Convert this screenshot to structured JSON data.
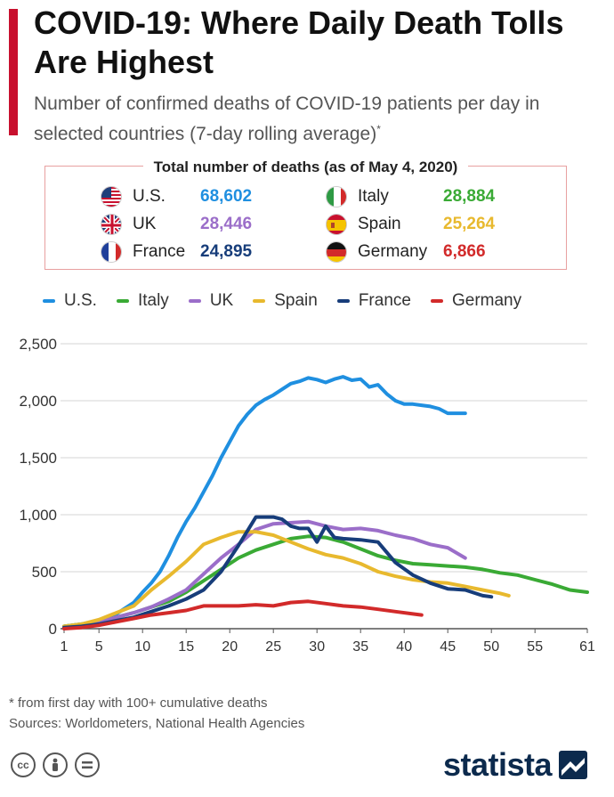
{
  "header": {
    "title": "COVID-19: Where Daily Death Tolls Are Highest",
    "subtitle": "Number of confirmed deaths of COVID-19 patients per day in selected countries (7-day rolling average)",
    "subtitle_mark": "*"
  },
  "totals": {
    "title": "Total number of deaths (as of May 4, 2020)",
    "rows": [
      {
        "country": "U.S.",
        "value": "68,602",
        "color": "#1f8fe0",
        "flag": "us-flag-icon"
      },
      {
        "country": "Italy",
        "value": "28,884",
        "color": "#3aaa35",
        "flag": "italy-flag-icon"
      },
      {
        "country": "UK",
        "value": "28,446",
        "color": "#9b6ec9",
        "flag": "uk-flag-icon"
      },
      {
        "country": "Spain",
        "value": "25,264",
        "color": "#e8b92e",
        "flag": "spain-flag-icon"
      },
      {
        "country": "France",
        "value": "24,895",
        "color": "#173d7a",
        "flag": "france-flag-icon"
      },
      {
        "country": "Germany",
        "value": "6,866",
        "color": "#d22a2a",
        "flag": "germany-flag-icon"
      }
    ]
  },
  "chart_data": {
    "type": "line",
    "title": "",
    "xlabel": "",
    "ylabel": "",
    "xlim": [
      1,
      61
    ],
    "ylim": [
      0,
      2500
    ],
    "x_ticks": [
      1,
      5,
      10,
      15,
      20,
      25,
      30,
      35,
      40,
      45,
      50,
      55,
      61
    ],
    "y_ticks": [
      0,
      500,
      1000,
      1500,
      2000,
      2500
    ],
    "y_tick_labels": [
      "0",
      "500",
      "1,000",
      "1,500",
      "2,000",
      "2,500"
    ],
    "grid": "horizontal",
    "legend": "top",
    "series": [
      {
        "name": "U.S.",
        "color": "#1f8fe0",
        "x": [
          1,
          3,
          5,
          7,
          9,
          10,
          11,
          12,
          13,
          14,
          15,
          16,
          17,
          18,
          19,
          20,
          21,
          22,
          23,
          24,
          25,
          26,
          27,
          28,
          29,
          30,
          31,
          32,
          33,
          34,
          35,
          36,
          37,
          38,
          39,
          40,
          41,
          42,
          43,
          44,
          45,
          46,
          47
        ],
        "y": [
          20,
          40,
          70,
          130,
          230,
          320,
          400,
          500,
          640,
          800,
          940,
          1060,
          1200,
          1340,
          1500,
          1640,
          1780,
          1880,
          1960,
          2010,
          2050,
          2100,
          2150,
          2170,
          2200,
          2185,
          2160,
          2190,
          2210,
          2180,
          2190,
          2120,
          2140,
          2060,
          2000,
          1970,
          1970,
          1960,
          1950,
          1930,
          1890,
          1890,
          1890
        ]
      },
      {
        "name": "Italy",
        "color": "#3aaa35",
        "x": [
          1,
          3,
          5,
          7,
          9,
          11,
          13,
          15,
          17,
          19,
          21,
          23,
          25,
          27,
          29,
          31,
          33,
          35,
          37,
          39,
          41,
          43,
          45,
          47,
          49,
          51,
          53,
          55,
          57,
          59,
          61
        ],
        "y": [
          20,
          40,
          70,
          100,
          140,
          190,
          240,
          320,
          420,
          520,
          620,
          690,
          740,
          790,
          810,
          800,
          760,
          700,
          640,
          600,
          570,
          560,
          550,
          540,
          520,
          490,
          470,
          430,
          390,
          340,
          320
        ]
      },
      {
        "name": "UK",
        "color": "#9b6ec9",
        "x": [
          1,
          3,
          5,
          7,
          9,
          11,
          13,
          15,
          17,
          19,
          21,
          23,
          25,
          27,
          29,
          31,
          33,
          35,
          37,
          39,
          41,
          43,
          45,
          47
        ],
        "y": [
          10,
          30,
          60,
          100,
          140,
          190,
          260,
          340,
          480,
          620,
          740,
          870,
          920,
          930,
          940,
          900,
          870,
          880,
          860,
          820,
          790,
          740,
          710,
          620
        ]
      },
      {
        "name": "Spain",
        "color": "#e8b92e",
        "x": [
          1,
          3,
          5,
          7,
          9,
          11,
          13,
          15,
          17,
          19,
          21,
          23,
          25,
          27,
          29,
          31,
          33,
          35,
          37,
          39,
          41,
          43,
          45,
          47,
          49,
          51,
          52
        ],
        "y": [
          20,
          40,
          80,
          140,
          200,
          340,
          460,
          590,
          740,
          800,
          850,
          850,
          820,
          760,
          700,
          650,
          620,
          570,
          500,
          460,
          430,
          410,
          400,
          370,
          340,
          310,
          290
        ]
      },
      {
        "name": "France",
        "color": "#173d7a",
        "x": [
          1,
          3,
          5,
          7,
          9,
          11,
          13,
          15,
          17,
          19,
          21,
          23,
          24,
          25,
          26,
          27,
          28,
          29,
          30,
          31,
          32,
          33,
          35,
          37,
          39,
          41,
          43,
          45,
          47,
          49,
          50
        ],
        "y": [
          10,
          20,
          40,
          70,
          100,
          150,
          200,
          260,
          340,
          500,
          730,
          980,
          980,
          980,
          960,
          900,
          880,
          880,
          760,
          900,
          800,
          790,
          780,
          760,
          580,
          470,
          400,
          350,
          340,
          290,
          280
        ]
      },
      {
        "name": "Germany",
        "color": "#d22a2a",
        "x": [
          1,
          3,
          5,
          7,
          9,
          11,
          13,
          15,
          17,
          19,
          21,
          23,
          25,
          27,
          29,
          31,
          33,
          35,
          37,
          39,
          41,
          42
        ],
        "y": [
          0,
          10,
          30,
          60,
          90,
          120,
          140,
          160,
          200,
          200,
          200,
          210,
          200,
          230,
          240,
          220,
          200,
          190,
          170,
          150,
          130,
          120
        ]
      }
    ]
  },
  "footer": {
    "note": "* from first day with 100+ cumulative deaths",
    "sources": "Sources: Worldometers, National Health Agencies",
    "brand": "statista"
  }
}
